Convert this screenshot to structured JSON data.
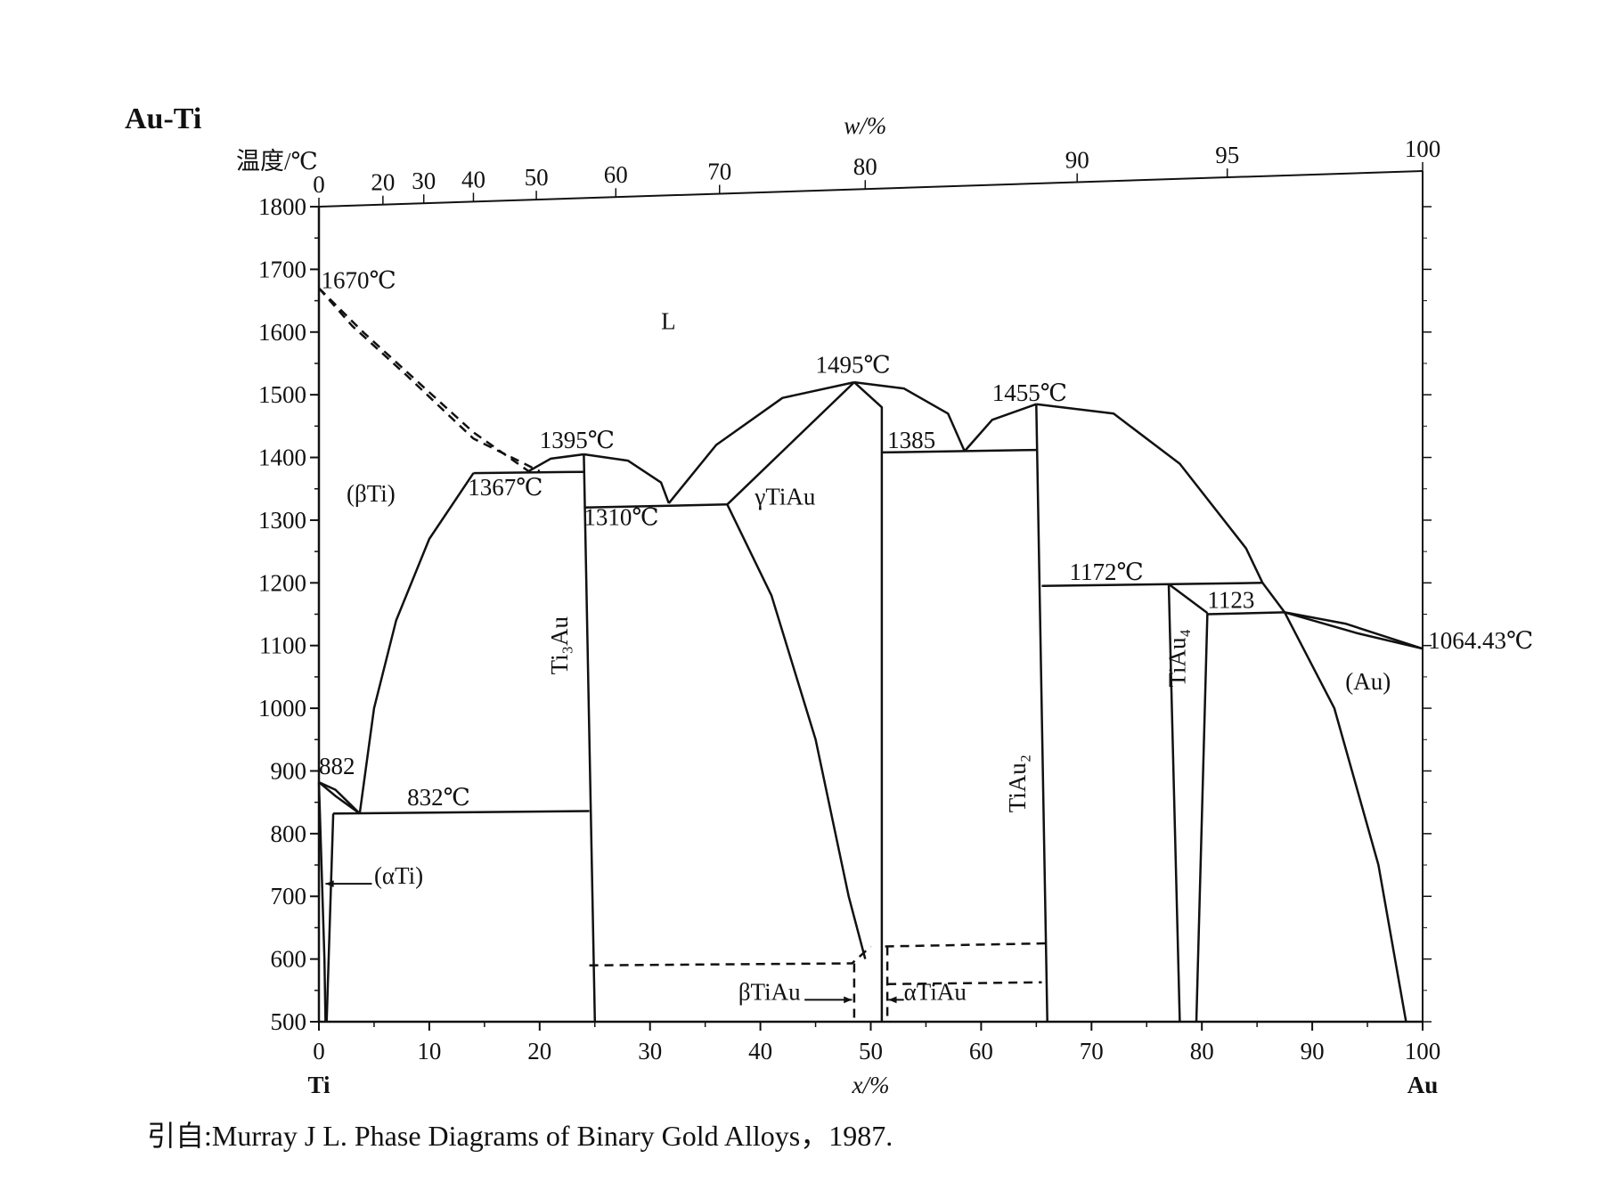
{
  "title": "Au-Ti",
  "source": "引自:Murray J L. Phase Diagrams of Binary Gold Alloys，1987.",
  "chart_data": {
    "type": "line",
    "title": "Au-Ti",
    "y_axis": {
      "label": "温度/℃",
      "range": [
        500,
        1800
      ],
      "ticks": [
        500,
        600,
        700,
        800,
        900,
        1000,
        1100,
        1200,
        1300,
        1400,
        1500,
        1600,
        1700,
        1800
      ]
    },
    "x_axis": {
      "label": "x/%",
      "range": [
        0,
        100
      ],
      "ticks": [
        0,
        10,
        20,
        30,
        40,
        50,
        60,
        70,
        80,
        90,
        100
      ],
      "left_end": "Ti",
      "right_end": "Au"
    },
    "top_axis": {
      "label": "w/%",
      "ticks": [
        {
          "label": "0",
          "x": 0
        },
        {
          "label": "20",
          "x": 5.8
        },
        {
          "label": "30",
          "x": 9.5
        },
        {
          "label": "40",
          "x": 14.0
        },
        {
          "label": "50",
          "x": 19.7
        },
        {
          "label": "60",
          "x": 26.9
        },
        {
          "label": "70",
          "x": 36.3
        },
        {
          "label": "80",
          "x": 49.5
        },
        {
          "label": "90",
          "x": 68.7
        },
        {
          "label": "95",
          "x": 82.3
        },
        {
          "label": "100",
          "x": 100
        }
      ]
    },
    "curves": [
      {
        "style": "dashed",
        "points": [
          [
            0,
            1670
          ],
          [
            3,
            1610
          ],
          [
            8,
            1530
          ],
          [
            14,
            1430
          ],
          [
            20,
            1378
          ]
        ]
      },
      {
        "style": "dashed",
        "points": [
          [
            0,
            1670
          ],
          [
            4,
            1600
          ],
          [
            9,
            1520
          ],
          [
            14,
            1440
          ],
          [
            19,
            1378
          ]
        ]
      },
      {
        "style": "solid",
        "points": [
          [
            3.7,
            832
          ],
          [
            5,
            1000
          ],
          [
            7,
            1140
          ],
          [
            10,
            1270
          ],
          [
            14,
            1375
          ]
        ]
      },
      {
        "style": "solid",
        "points": [
          [
            14,
            1375
          ],
          [
            24,
            1377
          ]
        ]
      },
      {
        "style": "solid",
        "points": [
          [
            19,
            1378
          ],
          [
            21,
            1398
          ],
          [
            24,
            1405
          ]
        ]
      },
      {
        "style": "solid",
        "points": [
          [
            24,
            1405
          ],
          [
            28,
            1395
          ],
          [
            31,
            1360
          ],
          [
            31.7,
            1327
          ]
        ]
      },
      {
        "style": "solid",
        "points": [
          [
            24,
            1405
          ],
          [
            25,
            500
          ]
        ]
      },
      {
        "style": "solid",
        "points": [
          [
            24,
            1320
          ],
          [
            37,
            1325
          ]
        ]
      },
      {
        "style": "solid",
        "points": [
          [
            31.7,
            1327
          ],
          [
            36,
            1420
          ],
          [
            42,
            1495
          ],
          [
            48.5,
            1520
          ]
        ]
      },
      {
        "style": "solid",
        "points": [
          [
            37,
            1325
          ],
          [
            48.5,
            1520
          ]
        ]
      },
      {
        "style": "solid",
        "points": [
          [
            37,
            1325
          ],
          [
            41,
            1180
          ],
          [
            45,
            950
          ],
          [
            48,
            700
          ],
          [
            49.5,
            600
          ]
        ]
      },
      {
        "style": "solid",
        "points": [
          [
            48.5,
            1520
          ],
          [
            51,
            1480
          ],
          [
            51,
            1400
          ],
          [
            51,
            1000
          ],
          [
            51,
            500
          ]
        ]
      },
      {
        "style": "solid",
        "points": [
          [
            48.5,
            1520
          ],
          [
            53,
            1510
          ],
          [
            57,
            1470
          ],
          [
            58.5,
            1410
          ]
        ]
      },
      {
        "style": "solid",
        "points": [
          [
            58.5,
            1410
          ],
          [
            61,
            1460
          ],
          [
            65,
            1485
          ]
        ]
      },
      {
        "style": "solid",
        "points": [
          [
            51,
            1408
          ],
          [
            65,
            1412
          ]
        ]
      },
      {
        "style": "solid",
        "points": [
          [
            65,
            1485
          ],
          [
            66,
            500
          ]
        ]
      },
      {
        "style": "solid",
        "points": [
          [
            65,
            1485
          ],
          [
            72,
            1470
          ],
          [
            78,
            1390
          ],
          [
            84,
            1255
          ],
          [
            85.5,
            1200
          ]
        ]
      },
      {
        "style": "solid",
        "points": [
          [
            65.5,
            1195
          ],
          [
            85.5,
            1200
          ]
        ]
      },
      {
        "style": "solid",
        "points": [
          [
            77,
            1198
          ],
          [
            78,
            500
          ]
        ]
      },
      {
        "style": "solid",
        "points": [
          [
            77,
            1198
          ],
          [
            80.5,
            1152
          ]
        ]
      },
      {
        "style": "solid",
        "points": [
          [
            80.5,
            1152
          ],
          [
            79.5,
            500
          ]
        ]
      },
      {
        "style": "solid",
        "points": [
          [
            80.5,
            1150
          ],
          [
            87.5,
            1153
          ]
        ]
      },
      {
        "style": "solid",
        "points": [
          [
            85.5,
            1200
          ],
          [
            87.5,
            1153
          ]
        ]
      },
      {
        "style": "solid",
        "points": [
          [
            87.5,
            1153
          ],
          [
            94,
            1120
          ],
          [
            100,
            1095
          ]
        ]
      },
      {
        "style": "solid",
        "points": [
          [
            87.5,
            1153
          ],
          [
            93,
            1135
          ],
          [
            100,
            1095
          ]
        ]
      },
      {
        "style": "solid",
        "points": [
          [
            87.5,
            1153
          ],
          [
            92,
            1000
          ],
          [
            96,
            750
          ],
          [
            98.5,
            500
          ]
        ]
      },
      {
        "style": "solid",
        "points": [
          [
            0,
            882
          ],
          [
            1.5,
            860
          ],
          [
            3.7,
            832
          ]
        ]
      },
      {
        "style": "solid",
        "points": [
          [
            0,
            882
          ],
          [
            1.5,
            870
          ],
          [
            3.7,
            832
          ]
        ]
      },
      {
        "style": "solid",
        "points": [
          [
            0,
            882
          ],
          [
            0.5,
            600
          ],
          [
            0.6,
            500
          ]
        ]
      },
      {
        "style": "solid",
        "points": [
          [
            1.3,
            832
          ],
          [
            0.7,
            500
          ]
        ]
      },
      {
        "style": "solid",
        "points": [
          [
            1.3,
            832
          ],
          [
            24.5,
            836
          ]
        ]
      },
      {
        "style": "dashed",
        "points": [
          [
            24.5,
            590
          ],
          [
            48.3,
            593
          ],
          [
            50,
            620
          ]
        ]
      },
      {
        "style": "dashed",
        "points": [
          [
            48.5,
            593
          ],
          [
            48.5,
            500
          ]
        ]
      },
      {
        "style": "dashed",
        "points": [
          [
            51.3,
            620
          ],
          [
            66,
            625
          ]
        ]
      },
      {
        "style": "dashed",
        "points": [
          [
            51.5,
            560
          ],
          [
            65.5,
            563
          ]
        ]
      },
      {
        "style": "dashed",
        "points": [
          [
            51.5,
            620
          ],
          [
            51.5,
            500
          ]
        ]
      }
    ],
    "annotations": [
      {
        "text": "1670℃",
        "x": 0.2,
        "y": 1670
      },
      {
        "text": "L",
        "x": 31,
        "y": 1605
      },
      {
        "text": "1495℃",
        "x": 45,
        "y": 1535
      },
      {
        "text": "1455℃",
        "x": 61,
        "y": 1490
      },
      {
        "text": "1395℃",
        "x": 20,
        "y": 1415
      },
      {
        "text": "1385",
        "x": 51.5,
        "y": 1415
      },
      {
        "text": "(βTi)",
        "x": 2.5,
        "y": 1330
      },
      {
        "text": "1367℃",
        "x": 13.5,
        "y": 1340
      },
      {
        "text": "1310℃",
        "x": 24,
        "y": 1292
      },
      {
        "text": "γTiAu",
        "x": 39.5,
        "y": 1325
      },
      {
        "text": "1172℃",
        "x": 68,
        "y": 1205
      },
      {
        "text": "1123",
        "x": 80.5,
        "y": 1160
      },
      {
        "text": "1064.43℃",
        "x": 100.5,
        "y": 1095
      },
      {
        "text": "(Au)",
        "x": 93,
        "y": 1030
      },
      {
        "text": "882",
        "x": 0,
        "y": 895
      },
      {
        "text": "832℃",
        "x": 8,
        "y": 845
      },
      {
        "text": "(αTi)",
        "x": 5,
        "y": 720
      },
      {
        "text": "βTiAu",
        "x": 38,
        "y": 535
      },
      {
        "text": "αTiAu",
        "x": 53,
        "y": 535
      },
      {
        "text": "Ti₃Au",
        "x": 22.5,
        "y": 1100,
        "rotated": true
      },
      {
        "text": "TiAu₂",
        "x": 64,
        "y": 880,
        "rotated": true
      },
      {
        "text": "TiAu₄",
        "x": 78.5,
        "y": 1080,
        "rotated": true
      }
    ]
  }
}
